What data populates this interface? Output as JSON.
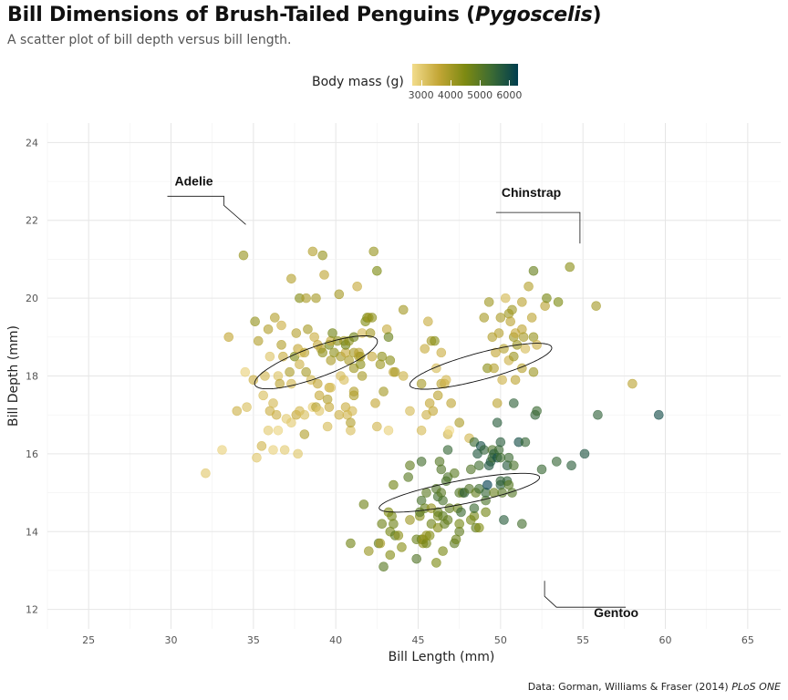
{
  "title": "Bill Dimensions of Brush-Tailed Penguins",
  "title_italic": "Pygoscelis",
  "subtitle": "A scatter plot of bill depth versus bill length.",
  "caption": "Data: Gorman, Williams & Fraser (2014)",
  "caption_italic": "PLoS ONE",
  "legend": {
    "title": "Body mass (g)",
    "ticks": [
      "3000",
      "4000",
      "5000",
      "6000"
    ],
    "tick_values": [
      3000,
      4000,
      5000,
      6000
    ],
    "range": [
      2700,
      6300
    ],
    "colors": [
      "#f2dc8c",
      "#c3a636",
      "#7d8a12",
      "#3c6b33",
      "#003d4e"
    ]
  },
  "chart_data": {
    "type": "scatter",
    "xlabel": "Bill Length (mm)",
    "ylabel": "Bill Depth (mm)",
    "xlim": [
      22.5,
      67
    ],
    "ylim": [
      11.5,
      24.5
    ],
    "xticks": [
      25,
      30,
      35,
      40,
      45,
      50,
      55,
      60,
      65
    ],
    "yticks": [
      12,
      14,
      16,
      18,
      20,
      22,
      24
    ],
    "grid": true,
    "color_variable": "Body mass (g)",
    "annotations": [
      {
        "label": "Adelie",
        "x": 30,
        "y": 22.9
      },
      {
        "label": "Chinstrap",
        "x": 50.5,
        "y": 22.6
      },
      {
        "label": "Gentoo",
        "x": 54,
        "y": 11.8
      }
    ],
    "ellipses": [
      {
        "group": "Adelie",
        "cx": 38.8,
        "cy": 18.35,
        "rx": 10.2,
        "ry": 2.4,
        "angle_deg": 20
      },
      {
        "group": "Chinstrap",
        "cx": 48.8,
        "cy": 18.25,
        "rx": 11.5,
        "ry": 2.1,
        "angle_deg": 15
      },
      {
        "group": "Gentoo",
        "cx": 47.5,
        "cy": 15.0,
        "rx": 12.8,
        "ry": 1.85,
        "angle_deg": 11
      }
    ],
    "points": [
      [
        32.1,
        15.5,
        3050
      ],
      [
        33.1,
        16.1,
        2900
      ],
      [
        33.5,
        19.0,
        3600
      ],
      [
        34.0,
        17.1,
        3400
      ],
      [
        34.4,
        21.1,
        4150
      ],
      [
        34.5,
        18.1,
        2900
      ],
      [
        34.6,
        17.2,
        3200
      ],
      [
        35.0,
        17.9,
        3450
      ],
      [
        35.1,
        19.4,
        4200
      ],
      [
        35.2,
        15.9,
        3050
      ],
      [
        35.3,
        18.9,
        3800
      ],
      [
        35.5,
        16.2,
        3350
      ],
      [
        35.6,
        17.5,
        3200
      ],
      [
        35.7,
        18.0,
        3350
      ],
      [
        35.9,
        16.6,
        3000
      ],
      [
        35.9,
        19.2,
        3800
      ],
      [
        36.0,
        17.1,
        3450
      ],
      [
        36.0,
        18.5,
        3100
      ],
      [
        36.2,
        16.1,
        2900
      ],
      [
        36.2,
        17.3,
        3300
      ],
      [
        36.3,
        19.5,
        3800
      ],
      [
        36.4,
        17.0,
        3450
      ],
      [
        36.5,
        16.6,
        2850
      ],
      [
        36.5,
        18.0,
        3150
      ],
      [
        36.6,
        17.8,
        3700
      ],
      [
        36.7,
        18.8,
        3800
      ],
      [
        36.7,
        19.3,
        3450
      ],
      [
        36.8,
        18.5,
        3500
      ],
      [
        36.9,
        16.1,
        3000
      ],
      [
        37.0,
        16.9,
        3000
      ],
      [
        37.2,
        18.1,
        3900
      ],
      [
        37.3,
        16.8,
        3000
      ],
      [
        37.3,
        17.8,
        3350
      ],
      [
        37.3,
        20.5,
        3775
      ],
      [
        37.5,
        18.5,
        4475
      ],
      [
        37.6,
        17.0,
        3600
      ],
      [
        37.6,
        19.1,
        3750
      ],
      [
        37.7,
        16.0,
        3075
      ],
      [
        37.7,
        18.7,
        3600
      ],
      [
        37.8,
        17.1,
        3300
      ],
      [
        37.8,
        18.3,
        3400
      ],
      [
        37.8,
        20.0,
        4400
      ],
      [
        37.9,
        18.6,
        2925
      ],
      [
        38.1,
        16.5,
        3825
      ],
      [
        38.1,
        17.0,
        3175
      ],
      [
        38.1,
        18.6,
        3700
      ],
      [
        38.2,
        18.1,
        3950
      ],
      [
        38.2,
        20.0,
        3900
      ],
      [
        38.3,
        19.2,
        3950
      ],
      [
        38.5,
        17.9,
        3325
      ],
      [
        38.6,
        17.2,
        2900
      ],
      [
        38.6,
        21.2,
        3800
      ],
      [
        38.7,
        19.0,
        3450
      ],
      [
        38.8,
        17.2,
        3800
      ],
      [
        38.8,
        20.0,
        3950
      ],
      [
        38.9,
        17.8,
        3625
      ],
      [
        38.9,
        18.8,
        3600
      ],
      [
        39.0,
        17.1,
        3050
      ],
      [
        39.0,
        17.5,
        3550
      ],
      [
        39.1,
        18.7,
        3750
      ],
      [
        39.2,
        18.6,
        4250
      ],
      [
        39.2,
        21.1,
        4150
      ],
      [
        39.3,
        20.6,
        3650
      ],
      [
        39.5,
        16.7,
        3250
      ],
      [
        39.5,
        17.4,
        3800
      ],
      [
        39.6,
        17.2,
        3550
      ],
      [
        39.6,
        17.7,
        3500
      ],
      [
        39.6,
        18.8,
        4600
      ],
      [
        39.7,
        17.7,
        3200
      ],
      [
        39.7,
        18.4,
        3900
      ],
      [
        39.7,
        18.9,
        3550
      ],
      [
        39.8,
        19.1,
        4650
      ],
      [
        39.9,
        18.6,
        4250
      ],
      [
        40.1,
        18.9,
        4300
      ],
      [
        40.2,
        17.0,
        3450
      ],
      [
        40.2,
        20.1,
        3975
      ],
      [
        40.3,
        18.0,
        3250
      ],
      [
        40.3,
        18.5,
        4000
      ],
      [
        40.5,
        17.9,
        3200
      ],
      [
        40.5,
        18.9,
        4050
      ],
      [
        40.6,
        17.2,
        3475
      ],
      [
        40.6,
        18.6,
        3550
      ],
      [
        40.6,
        18.8,
        4700
      ],
      [
        40.7,
        17.0,
        3350
      ],
      [
        40.8,
        18.4,
        3900
      ],
      [
        40.8,
        18.9,
        4300
      ],
      [
        40.9,
        16.6,
        3200
      ],
      [
        40.9,
        16.8,
        3800
      ],
      [
        41.0,
        17.1,
        3300
      ],
      [
        41.1,
        17.5,
        3900
      ],
      [
        41.1,
        17.6,
        3800
      ],
      [
        41.1,
        18.2,
        4050
      ],
      [
        41.1,
        18.6,
        3950
      ],
      [
        41.1,
        19.0,
        4700
      ],
      [
        41.3,
        20.3,
        3550
      ],
      [
        41.4,
        18.5,
        3875
      ],
      [
        41.4,
        18.6,
        3700
      ],
      [
        41.5,
        18.3,
        4300
      ],
      [
        41.5,
        18.5,
        4000
      ],
      [
        41.6,
        18.0,
        3950
      ],
      [
        41.6,
        19.1,
        3300
      ],
      [
        41.8,
        19.4,
        4450
      ],
      [
        41.9,
        19.5,
        4500
      ],
      [
        42.0,
        19.5,
        4050
      ],
      [
        42.1,
        19.1,
        4000
      ],
      [
        42.2,
        18.5,
        3550
      ],
      [
        42.2,
        19.5,
        4300
      ],
      [
        42.3,
        21.2,
        4150
      ],
      [
        42.4,
        17.3,
        3600
      ],
      [
        42.5,
        16.7,
        3350
      ],
      [
        42.5,
        20.7,
        4500
      ],
      [
        42.7,
        18.3,
        4075
      ],
      [
        42.8,
        18.5,
        4250
      ],
      [
        42.9,
        17.6,
        4000
      ],
      [
        43.1,
        19.2,
        3500
      ],
      [
        43.2,
        16.6,
        2900
      ],
      [
        43.2,
        19.0,
        4775
      ],
      [
        43.3,
        18.4,
        4300
      ],
      [
        43.5,
        18.1,
        3650
      ],
      [
        43.6,
        18.1,
        3900
      ],
      [
        44.1,
        18.0,
        3425
      ],
      [
        44.1,
        19.7,
        4000
      ],
      [
        44.5,
        17.1,
        3250
      ],
      [
        45.2,
        16.6,
        3250
      ],
      [
        45.2,
        17.8,
        3950
      ],
      [
        45.4,
        18.7,
        3525
      ],
      [
        45.5,
        17.0,
        3400
      ],
      [
        45.6,
        19.4,
        3500
      ],
      [
        45.7,
        17.3,
        3600
      ],
      [
        45.8,
        18.9,
        4000
      ],
      [
        45.9,
        17.1,
        3575
      ],
      [
        46.0,
        18.9,
        4350
      ],
      [
        46.1,
        18.2,
        3250
      ],
      [
        46.2,
        17.5,
        3700
      ],
      [
        46.4,
        17.8,
        3700
      ],
      [
        46.4,
        18.6,
        3450
      ],
      [
        46.6,
        17.8,
        3500
      ],
      [
        46.7,
        17.9,
        3300
      ],
      [
        46.8,
        16.5,
        3400
      ],
      [
        46.9,
        16.6,
        2700
      ],
      [
        47.0,
        17.3,
        3650
      ],
      [
        47.5,
        16.8,
        3900
      ],
      [
        48.1,
        16.4,
        3325
      ],
      [
        49.0,
        19.5,
        3950
      ],
      [
        49.2,
        18.2,
        4300
      ],
      [
        49.3,
        19.9,
        4050
      ],
      [
        49.5,
        19.0,
        3800
      ],
      [
        49.6,
        18.2,
        3775
      ],
      [
        49.7,
        18.6,
        3600
      ],
      [
        49.8,
        17.3,
        3675
      ],
      [
        49.9,
        19.1,
        3750
      ],
      [
        50.0,
        19.5,
        3900
      ],
      [
        50.1,
        17.9,
        3400
      ],
      [
        50.2,
        18.7,
        3775
      ],
      [
        50.3,
        20.0,
        3300
      ],
      [
        50.5,
        18.4,
        3400
      ],
      [
        50.5,
        19.6,
        4050
      ],
      [
        50.6,
        19.4,
        3700
      ],
      [
        50.7,
        19.7,
        4050
      ],
      [
        50.8,
        18.5,
        4100
      ],
      [
        50.8,
        19.0,
        4100
      ],
      [
        50.9,
        17.9,
        3675
      ],
      [
        50.9,
        19.1,
        3550
      ],
      [
        51.0,
        18.8,
        4100
      ],
      [
        51.3,
        18.2,
        3750
      ],
      [
        51.3,
        19.2,
        3650
      ],
      [
        51.3,
        19.9,
        3700
      ],
      [
        51.4,
        19.0,
        3950
      ],
      [
        51.5,
        18.7,
        3250
      ],
      [
        51.7,
        20.3,
        3775
      ],
      [
        51.9,
        19.5,
        3675
      ],
      [
        52.0,
        18.1,
        4100
      ],
      [
        52.0,
        19.0,
        4150
      ],
      [
        52.0,
        20.7,
        4800
      ],
      [
        52.2,
        18.8,
        3450
      ],
      [
        52.7,
        19.8,
        3725
      ],
      [
        52.8,
        20.0,
        4550
      ],
      [
        53.5,
        19.9,
        4500
      ],
      [
        54.2,
        20.8,
        4300
      ],
      [
        55.8,
        19.8,
        4000
      ],
      [
        58.0,
        17.8,
        3700
      ],
      [
        40.9,
        13.7,
        4650
      ],
      [
        41.7,
        14.7,
        4700
      ],
      [
        42.0,
        13.5,
        4150
      ],
      [
        42.6,
        13.7,
        4950
      ],
      [
        42.7,
        13.7,
        3950
      ],
      [
        42.8,
        14.2,
        4700
      ],
      [
        42.9,
        13.1,
        5000
      ],
      [
        43.2,
        14.5,
        4450
      ],
      [
        43.3,
        13.4,
        4400
      ],
      [
        43.3,
        14.0,
        4575
      ],
      [
        43.4,
        14.4,
        4600
      ],
      [
        43.5,
        14.2,
        4700
      ],
      [
        43.5,
        15.2,
        4650
      ],
      [
        43.6,
        13.9,
        4900
      ],
      [
        43.8,
        13.9,
        4300
      ],
      [
        44.0,
        13.6,
        4350
      ],
      [
        44.4,
        15.4,
        5000
      ],
      [
        44.5,
        14.3,
        4100
      ],
      [
        44.5,
        15.7,
        4875
      ],
      [
        44.9,
        13.3,
        5100
      ],
      [
        44.9,
        13.8,
        4750
      ],
      [
        45.1,
        14.4,
        4400
      ],
      [
        45.1,
        14.5,
        5000
      ],
      [
        45.2,
        13.8,
        4750
      ],
      [
        45.2,
        14.8,
        5200
      ],
      [
        45.2,
        15.8,
        5300
      ],
      [
        45.3,
        13.7,
        4300
      ],
      [
        45.3,
        13.8,
        4200
      ],
      [
        45.4,
        14.6,
        4800
      ],
      [
        45.5,
        13.7,
        4650
      ],
      [
        45.5,
        13.9,
        4200
      ],
      [
        45.5,
        15.0,
        4950
      ],
      [
        45.7,
        13.9,
        4400
      ],
      [
        45.8,
        14.2,
        4700
      ],
      [
        45.8,
        14.6,
        4200
      ],
      [
        46.1,
        13.2,
        4500
      ],
      [
        46.1,
        15.1,
        5100
      ],
      [
        46.2,
        14.1,
        4375
      ],
      [
        46.2,
        14.4,
        4600
      ],
      [
        46.2,
        14.5,
        4800
      ],
      [
        46.2,
        14.9,
        5300
      ],
      [
        46.3,
        15.8,
        5050
      ],
      [
        46.4,
        15.0,
        4975
      ],
      [
        46.4,
        15.6,
        5100
      ],
      [
        46.5,
        13.5,
        4550
      ],
      [
        46.5,
        14.4,
        4900
      ],
      [
        46.5,
        14.8,
        5200
      ],
      [
        46.6,
        14.2,
        4850
      ],
      [
        46.7,
        15.3,
        5200
      ],
      [
        46.8,
        14.3,
        4850
      ],
      [
        46.8,
        15.4,
        5150
      ],
      [
        46.8,
        16.1,
        5500
      ],
      [
        46.9,
        14.6,
        4875
      ],
      [
        47.2,
        13.7,
        4925
      ],
      [
        47.2,
        15.5,
        4975
      ],
      [
        47.3,
        13.8,
        4725
      ],
      [
        47.4,
        14.6,
        4725
      ],
      [
        47.5,
        14.0,
        4875
      ],
      [
        47.5,
        14.2,
        4600
      ],
      [
        47.5,
        15.0,
        5076
      ],
      [
        47.6,
        14.5,
        5400
      ],
      [
        47.7,
        15.0,
        4875
      ],
      [
        47.8,
        15.0,
        5650
      ],
      [
        48.1,
        15.1,
        5100
      ],
      [
        48.2,
        14.3,
        4600
      ],
      [
        48.2,
        15.6,
        5100
      ],
      [
        48.4,
        14.4,
        4600
      ],
      [
        48.4,
        14.6,
        5400
      ],
      [
        48.4,
        16.3,
        5400
      ],
      [
        48.5,
        14.1,
        4850
      ],
      [
        48.5,
        15.0,
        4850
      ],
      [
        48.6,
        16.0,
        5800
      ],
      [
        48.7,
        14.1,
        4450
      ],
      [
        48.7,
        15.1,
        5350
      ],
      [
        48.7,
        15.7,
        5350
      ],
      [
        48.8,
        16.2,
        6000
      ],
      [
        49.0,
        16.1,
        5550
      ],
      [
        49.1,
        14.5,
        4625
      ],
      [
        49.1,
        14.8,
        5150
      ],
      [
        49.1,
        15.0,
        5500
      ],
      [
        49.2,
        15.2,
        6300
      ],
      [
        49.3,
        15.7,
        5850
      ],
      [
        49.4,
        15.8,
        5800
      ],
      [
        49.5,
        15.9,
        5400
      ],
      [
        49.5,
        16.1,
        5150
      ],
      [
        49.6,
        15.0,
        4750
      ],
      [
        49.6,
        16.0,
        5700
      ],
      [
        49.8,
        15.9,
        5950
      ],
      [
        49.8,
        16.8,
        5700
      ],
      [
        49.9,
        16.1,
        5400
      ],
      [
        50.0,
        15.2,
        5700
      ],
      [
        50.0,
        15.3,
        5550
      ],
      [
        50.0,
        15.9,
        5350
      ],
      [
        50.0,
        16.3,
        5700
      ],
      [
        50.1,
        15.0,
        5000
      ],
      [
        50.2,
        14.3,
        5700
      ],
      [
        50.4,
        15.3,
        5550
      ],
      [
        50.4,
        15.7,
        5750
      ],
      [
        50.5,
        15.2,
        5000
      ],
      [
        50.5,
        15.9,
        5400
      ],
      [
        50.7,
        15.0,
        5050
      ],
      [
        50.8,
        15.7,
        5200
      ],
      [
        50.8,
        17.3,
        5600
      ],
      [
        51.1,
        16.3,
        6000
      ],
      [
        51.3,
        14.2,
        5300
      ],
      [
        51.5,
        16.3,
        5500
      ],
      [
        52.1,
        17.0,
        5550
      ],
      [
        52.2,
        17.1,
        5400
      ],
      [
        52.5,
        15.6,
        5450
      ],
      [
        53.4,
        15.8,
        5500
      ],
      [
        54.3,
        15.7,
        5650
      ],
      [
        55.1,
        16.0,
        5850
      ],
      [
        55.9,
        17.0,
        5600
      ],
      [
        59.6,
        17.0,
        6050
      ]
    ]
  }
}
